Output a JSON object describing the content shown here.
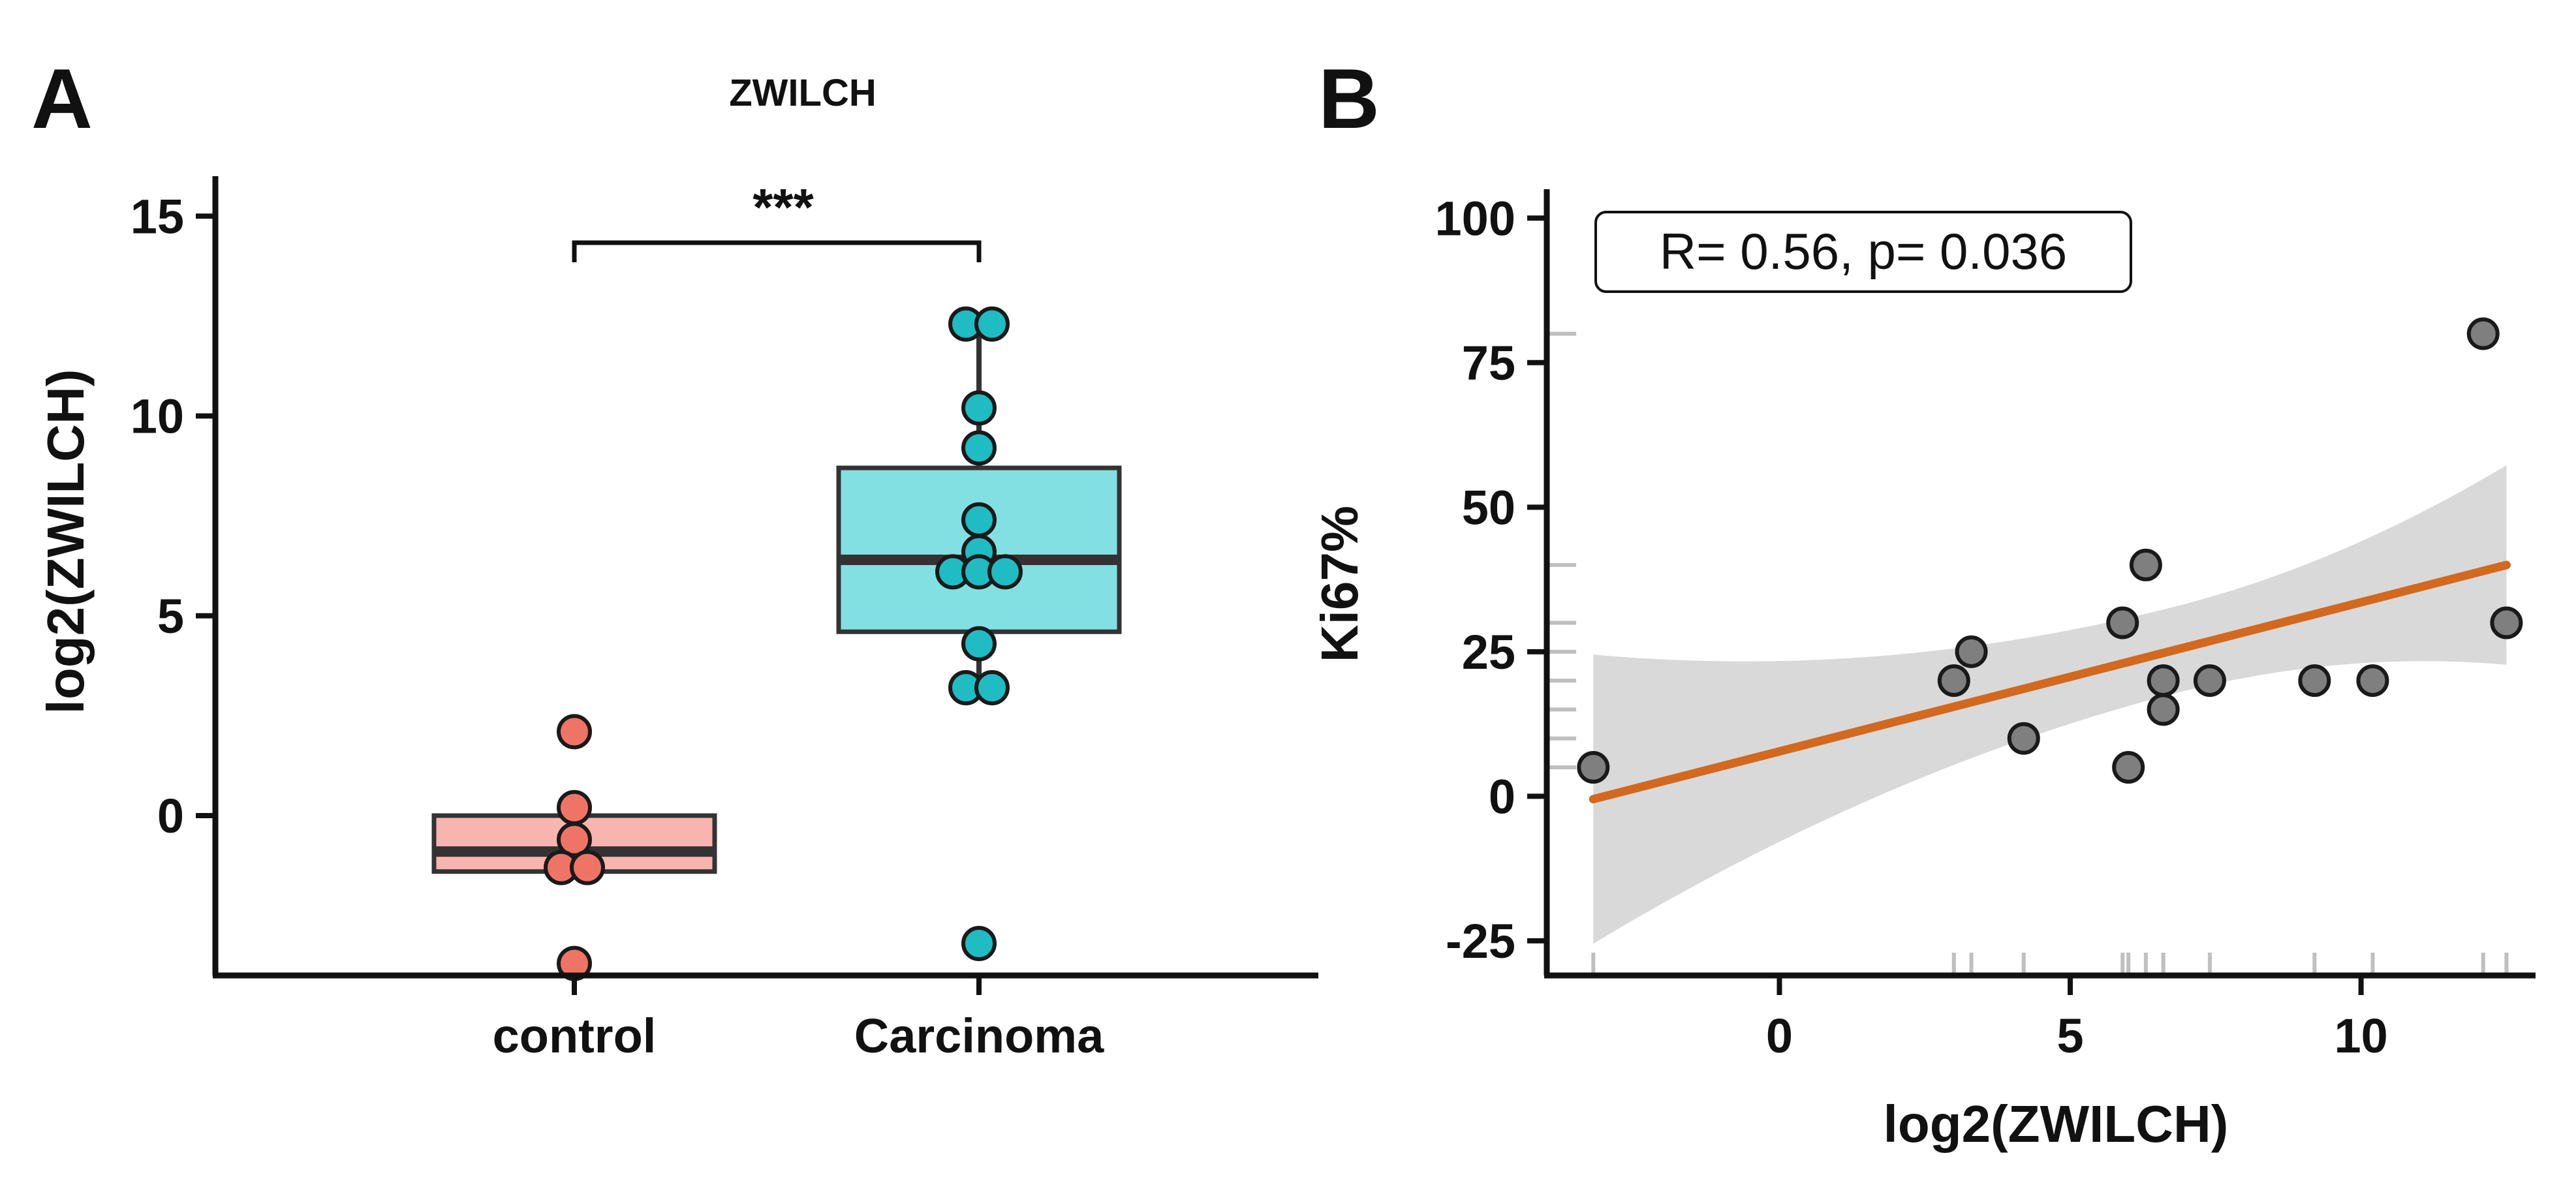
{
  "chart_data": [
    {
      "panel": "A",
      "type": "box",
      "title": "ZWILCH",
      "xlabel": "",
      "ylabel": "log2(ZWILCH)",
      "categories": [
        "control",
        "Carcinoma"
      ],
      "ylim": [
        -4,
        16
      ],
      "yticks": [
        0,
        5,
        10,
        15
      ],
      "significance": {
        "label": "***",
        "between": [
          "control",
          "Carcinoma"
        ]
      },
      "colors": {
        "control_fill": "#f8b4ae",
        "control_point": "#f07466",
        "carcinoma_fill": "#83e0e2",
        "carcinoma_point": "#1fbcc4",
        "outline": "#333333"
      },
      "boxes": [
        {
          "category": "control",
          "q1": -1.4,
          "median": -0.9,
          "q3": 0.0,
          "whisker_low": -1.4,
          "whisker_high": 0.0
        },
        {
          "category": "Carcinoma",
          "q1": 4.6,
          "median": 6.4,
          "q3": 8.7,
          "whisker_low": 3.2,
          "whisker_high": 12.3
        }
      ],
      "points": [
        {
          "category": "control",
          "values": [
            2.1,
            0.2,
            -0.6,
            -1.3,
            -1.3,
            -3.7
          ]
        },
        {
          "category": "Carcinoma",
          "values": [
            12.3,
            12.3,
            10.2,
            9.2,
            7.4,
            6.6,
            6.1,
            6.1,
            6.1,
            4.3,
            3.2,
            3.2,
            -3.2
          ]
        }
      ]
    },
    {
      "panel": "B",
      "type": "scatter",
      "xlabel": "log2(ZWILCH)",
      "ylabel": "Ki67%",
      "xlim": [
        -4,
        13
      ],
      "ylim": [
        -31,
        105
      ],
      "xticks": [
        0,
        5,
        10
      ],
      "yticks": [
        -25,
        0,
        25,
        50,
        75,
        100
      ],
      "ytick_labels": [
        "-25",
        "0",
        "25",
        "50",
        "75",
        "100"
      ],
      "annotation": "R= 0.56, p= 0.036",
      "points": [
        {
          "x": -3.2,
          "y": 5
        },
        {
          "x": 3.0,
          "y": 20
        },
        {
          "x": 3.3,
          "y": 25
        },
        {
          "x": 4.2,
          "y": 10
        },
        {
          "x": 5.9,
          "y": 30
        },
        {
          "x": 6.0,
          "y": 5
        },
        {
          "x": 6.3,
          "y": 40
        },
        {
          "x": 6.6,
          "y": 15
        },
        {
          "x": 6.6,
          "y": 20
        },
        {
          "x": 7.4,
          "y": 20
        },
        {
          "x": 9.2,
          "y": 20
        },
        {
          "x": 10.2,
          "y": 20
        },
        {
          "x": 12.1,
          "y": 80
        },
        {
          "x": 12.5,
          "y": 30
        }
      ],
      "fit": {
        "x": [
          -3.2,
          12.5
        ],
        "y": [
          -0.5,
          40
        ]
      },
      "ci_band": {
        "x": [
          -3.2,
          12.5
        ],
        "lower": [
          -25.5,
          23
        ],
        "upper": [
          24.5,
          57.5
        ]
      },
      "colors": {
        "point": "#7f7f7f",
        "fit_line": "#d2691e",
        "band": "#d9d9d9",
        "rug": "#bfbfbf"
      }
    }
  ]
}
